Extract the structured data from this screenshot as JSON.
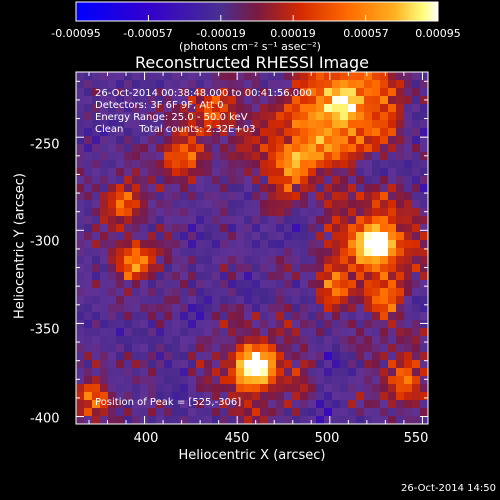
{
  "chart_data": {
    "type": "heatmap",
    "title": "Reconstructed RHESSI Image",
    "xlabel": "Heliocentric X (arcsec)",
    "ylabel": "Heliocentric Y (arcsec)",
    "xlim": [
      363,
      553
    ],
    "ylim": [
      -404,
      -215
    ],
    "x_ticks": [
      "400",
      "450",
      "500",
      "550"
    ],
    "x_tick_values": [
      400,
      450,
      500,
      550
    ],
    "y_ticks": [
      "-250",
      "-300",
      "-350",
      "-400"
    ],
    "y_tick_values": [
      -250,
      -300,
      -350,
      -400
    ],
    "colorbar": {
      "ticks": [
        "-0.00095",
        "-0.00057",
        "-0.00019",
        "0.00019",
        "0.00057",
        "0.00095"
      ],
      "tick_values": [
        -0.00095,
        -0.00057,
        -0.00019,
        0.00019,
        0.00057,
        0.00095
      ],
      "range": [
        -0.00095,
        0.00095
      ],
      "units_label": "(photons cm⁻² s⁻¹ asec⁻²)",
      "colormap": "blue-purple-red-orange-yellow-white"
    },
    "annotations": [
      "26-Oct-2014 00:38:48.000 to 00:41:56.000",
      "Detectors: 3F 6F 9F, Att 0",
      "Energy Range: 25.0 - 50.0 keV",
      "Clean     Total counts: 2.32E+03"
    ],
    "peak_label": "Position of Peak = [525,-306]",
    "peak_position": [
      525,
      -306
    ],
    "sources": [
      {
        "x": 525,
        "y": -306,
        "amp": 1.0,
        "sigma": 13
      },
      {
        "x": 460,
        "y": -374,
        "amp": 0.95,
        "sigma": 12
      },
      {
        "x": 508,
        "y": -232,
        "amp": 0.85,
        "sigma": 18
      },
      {
        "x": 480,
        "y": -262,
        "amp": 0.6,
        "sigma": 14
      },
      {
        "x": 395,
        "y": -318,
        "amp": 0.55,
        "sigma": 10
      },
      {
        "x": 388,
        "y": -285,
        "amp": 0.45,
        "sigma": 10
      },
      {
        "x": 540,
        "y": -380,
        "amp": 0.5,
        "sigma": 11
      },
      {
        "x": 420,
        "y": -260,
        "amp": 0.45,
        "sigma": 11
      },
      {
        "x": 530,
        "y": -340,
        "amp": 0.45,
        "sigma": 9
      },
      {
        "x": 440,
        "y": -235,
        "amp": 0.4,
        "sigma": 12
      },
      {
        "x": 500,
        "y": -330,
        "amp": 0.4,
        "sigma": 10
      },
      {
        "x": 372,
        "y": -390,
        "amp": 0.45,
        "sigma": 10
      }
    ],
    "colors": {
      "cmap": [
        "#0000ff",
        "#3300cc",
        "#4a2f90",
        "#5a3aa0",
        "#7a1a40",
        "#d42a00",
        "#ff6a00",
        "#ffb020",
        "#ffff80",
        "#ffffff"
      ]
    }
  },
  "footer": {
    "timestamp": "26-Oct-2014 14:50"
  }
}
